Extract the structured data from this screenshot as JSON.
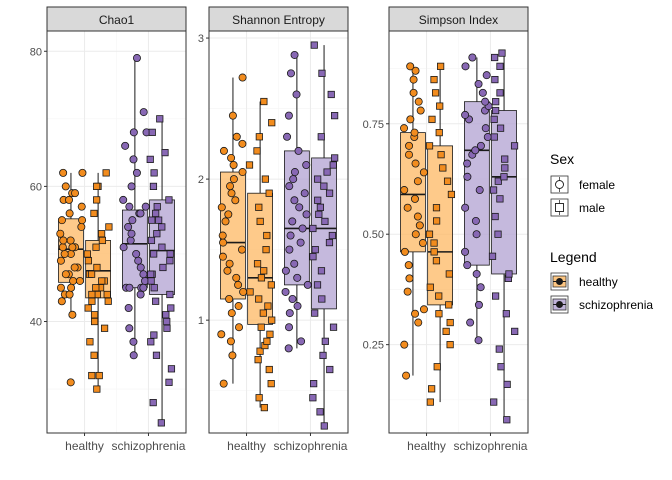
{
  "colors": {
    "healthy": "#FDB863",
    "schizophrenia": "#B2A1D1",
    "point_healthy": "#F28C1E",
    "point_schizophrenia": "#8868B4",
    "stroke": "#1a1a1a",
    "grid_major": "#ebebeb",
    "grid_minor": "#f5f5f5",
    "strip_fill": "#d9d9d9"
  },
  "chart_data": [
    {
      "type": "box",
      "title": "Chao1",
      "xlabel": "",
      "ylabel": "",
      "categories": [
        "healthy",
        "schizophrenia"
      ],
      "ylim": [
        23.5,
        83
      ],
      "yticks": [
        {
          "v": 40,
          "label": "40"
        },
        {
          "v": 60,
          "label": "60"
        },
        {
          "v": 80,
          "label": "80"
        }
      ],
      "boxes": [
        {
          "group": "healthy",
          "sex": "female",
          "q1": 45.8,
          "median": 50.7,
          "q3": 55.2,
          "wmin": 41,
          "wmax": 62,
          "outliers": [
            31
          ],
          "points": [
            31,
            41,
            43,
            44,
            44,
            45,
            45,
            46,
            46,
            47,
            47,
            48,
            48,
            49,
            50,
            50,
            51,
            51,
            51,
            52,
            52,
            53,
            54,
            55,
            55,
            56,
            57,
            58,
            58,
            59,
            59,
            60,
            62,
            62
          ]
        },
        {
          "group": "healthy",
          "sex": "male",
          "q1": 43.5,
          "median": 47.5,
          "q3": 52,
          "wmin": 30,
          "wmax": 62,
          "outliers": [],
          "points": [
            30,
            32,
            32,
            35,
            37,
            39,
            40,
            41,
            42,
            43,
            43,
            44,
            44,
            44,
            45,
            45,
            46,
            46,
            47,
            47,
            48,
            49,
            50,
            51,
            52,
            53,
            54,
            56,
            58,
            60,
            60,
            62
          ]
        },
        {
          "group": "schizophrenia",
          "sex": "female",
          "q1": 45,
          "median": 51.5,
          "q3": 56.5,
          "wmin": 35,
          "wmax": 79,
          "outliers": [],
          "points": [
            35,
            37,
            39,
            42,
            44,
            45,
            45,
            45,
            45,
            46,
            46,
            47,
            48,
            49,
            50,
            51,
            52,
            53,
            54,
            55,
            56,
            56,
            57,
            57,
            58,
            60,
            62,
            64,
            66,
            68,
            68,
            71,
            79
          ]
        },
        {
          "group": "schizophrenia",
          "sex": "male",
          "q1": 44,
          "median": 50.5,
          "q3": 58,
          "wmin": 25,
          "wmax": 70,
          "outliers": [],
          "points": [
            25,
            28,
            31,
            33,
            35,
            37,
            38,
            39,
            40,
            41,
            42,
            43,
            44,
            45,
            46,
            47,
            47,
            48,
            49,
            50,
            50,
            51,
            52,
            53,
            54,
            55,
            55,
            56,
            57,
            58,
            60,
            62,
            64,
            65,
            68,
            70
          ]
        }
      ]
    },
    {
      "type": "box",
      "title": "Shannon Entropy",
      "xlabel": "",
      "ylabel": "",
      "categories": [
        "healthy",
        "schizophrenia"
      ],
      "ylim": [
        0.2,
        3.05
      ],
      "yticks": [
        {
          "v": 1,
          "label": "1"
        },
        {
          "v": 2,
          "label": "2"
        },
        {
          "v": 3,
          "label": "3"
        }
      ],
      "boxes": [
        {
          "group": "healthy",
          "sex": "female",
          "q1": 1.15,
          "median": 1.55,
          "q3": 2.05,
          "wmin": 0.55,
          "wmax": 2.72,
          "outliers": [],
          "points": [
            0.55,
            0.75,
            0.85,
            0.9,
            0.95,
            1.05,
            1.1,
            1.15,
            1.2,
            1.25,
            1.3,
            1.35,
            1.4,
            1.45,
            1.5,
            1.55,
            1.6,
            1.7,
            1.75,
            1.8,
            1.85,
            1.9,
            1.95,
            2.0,
            2.05,
            2.1,
            2.15,
            2.2,
            2.25,
            2.3,
            2.45,
            2.72
          ]
        },
        {
          "group": "healthy",
          "sex": "male",
          "q1": 0.97,
          "median": 1.3,
          "q3": 1.9,
          "wmin": 0.38,
          "wmax": 2.55,
          "outliers": [],
          "points": [
            0.38,
            0.45,
            0.55,
            0.65,
            0.72,
            0.78,
            0.82,
            0.85,
            0.9,
            0.95,
            1.0,
            1.05,
            1.1,
            1.15,
            1.2,
            1.25,
            1.3,
            1.35,
            1.4,
            1.5,
            1.6,
            1.7,
            1.8,
            1.9,
            2.0,
            2.1,
            2.2,
            2.3,
            2.4,
            2.55
          ]
        },
        {
          "group": "schizophrenia",
          "sex": "female",
          "q1": 1.25,
          "median": 1.65,
          "q3": 2.2,
          "wmin": 0.8,
          "wmax": 2.88,
          "outliers": [],
          "points": [
            0.8,
            0.85,
            0.95,
            1.05,
            1.1,
            1.15,
            1.2,
            1.25,
            1.3,
            1.35,
            1.4,
            1.5,
            1.55,
            1.6,
            1.65,
            1.7,
            1.75,
            1.8,
            1.85,
            1.9,
            1.95,
            2.0,
            2.05,
            2.1,
            2.2,
            2.3,
            2.45,
            2.6,
            2.75,
            2.88
          ]
        },
        {
          "group": "schizophrenia",
          "sex": "male",
          "q1": 1.08,
          "median": 1.65,
          "q3": 2.15,
          "wmin": 0.25,
          "wmax": 2.95,
          "outliers": [],
          "points": [
            0.25,
            0.35,
            0.45,
            0.55,
            0.65,
            0.75,
            0.85,
            0.95,
            1.05,
            1.15,
            1.25,
            1.35,
            1.45,
            1.5,
            1.55,
            1.6,
            1.65,
            1.7,
            1.75,
            1.8,
            1.85,
            1.9,
            1.95,
            2.0,
            2.05,
            2.1,
            2.15,
            2.3,
            2.45,
            2.6,
            2.75,
            2.95
          ]
        }
      ]
    },
    {
      "type": "box",
      "title": "Simpson Index",
      "xlabel": "",
      "ylabel": "",
      "categories": [
        "healthy",
        "schizophrenia"
      ],
      "ylim": [
        0.05,
        0.96
      ],
      "yticks": [
        {
          "v": 0.25,
          "label": "0.25"
        },
        {
          "v": 0.5,
          "label": "0.50"
        },
        {
          "v": 0.75,
          "label": "0.75"
        }
      ],
      "boxes": [
        {
          "group": "healthy",
          "sex": "female",
          "q1": 0.46,
          "median": 0.59,
          "q3": 0.73,
          "wmin": 0.18,
          "wmax": 0.88,
          "outliers": [],
          "points": [
            0.18,
            0.25,
            0.3,
            0.32,
            0.33,
            0.37,
            0.4,
            0.43,
            0.46,
            0.48,
            0.5,
            0.52,
            0.54,
            0.56,
            0.58,
            0.6,
            0.62,
            0.64,
            0.66,
            0.68,
            0.7,
            0.72,
            0.73,
            0.74,
            0.76,
            0.78,
            0.8,
            0.82,
            0.85,
            0.87,
            0.88
          ]
        },
        {
          "group": "healthy",
          "sex": "male",
          "q1": 0.34,
          "median": 0.46,
          "q3": 0.7,
          "wmin": 0.12,
          "wmax": 0.88,
          "outliers": [],
          "points": [
            0.12,
            0.15,
            0.2,
            0.25,
            0.28,
            0.3,
            0.32,
            0.34,
            0.36,
            0.38,
            0.41,
            0.44,
            0.46,
            0.48,
            0.5,
            0.53,
            0.56,
            0.59,
            0.62,
            0.65,
            0.68,
            0.7,
            0.73,
            0.76,
            0.79,
            0.82,
            0.85,
            0.88
          ]
        },
        {
          "group": "schizophrenia",
          "sex": "female",
          "q1": 0.43,
          "median": 0.69,
          "q3": 0.8,
          "wmin": 0.26,
          "wmax": 0.9,
          "outliers": [],
          "points": [
            0.26,
            0.3,
            0.34,
            0.38,
            0.41,
            0.43,
            0.46,
            0.5,
            0.53,
            0.56,
            0.6,
            0.63,
            0.66,
            0.68,
            0.69,
            0.7,
            0.72,
            0.74,
            0.76,
            0.77,
            0.78,
            0.79,
            0.8,
            0.82,
            0.84,
            0.86,
            0.88,
            0.9
          ]
        },
        {
          "group": "schizophrenia",
          "sex": "male",
          "q1": 0.41,
          "median": 0.63,
          "q3": 0.78,
          "wmin": 0.08,
          "wmax": 0.91,
          "outliers": [],
          "points": [
            0.08,
            0.12,
            0.16,
            0.2,
            0.24,
            0.28,
            0.32,
            0.36,
            0.4,
            0.41,
            0.45,
            0.5,
            0.54,
            0.58,
            0.6,
            0.62,
            0.63,
            0.65,
            0.67,
            0.7,
            0.72,
            0.74,
            0.76,
            0.78,
            0.8,
            0.82,
            0.85,
            0.88,
            0.9,
            0.91
          ]
        }
      ]
    }
  ],
  "legend": {
    "sex_title": "Sex",
    "sex_items": [
      {
        "label": "female",
        "shape": "circle"
      },
      {
        "label": "male",
        "shape": "square"
      }
    ],
    "group_title": "Legend",
    "group_items": [
      {
        "label": "healthy",
        "key": "healthy"
      },
      {
        "label": "schizophrenia",
        "key": "schizophrenia"
      }
    ]
  }
}
